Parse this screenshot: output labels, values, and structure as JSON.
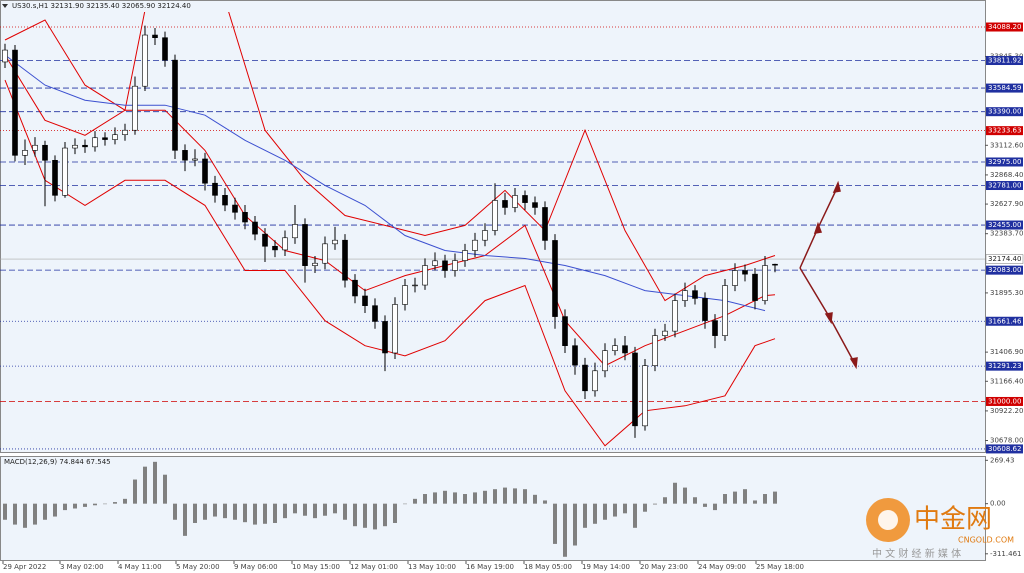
{
  "chart_data": [
    {
      "type": "candlestick",
      "title": "US30.s,H1  32131.90 32135.40 32065.90 32124.40",
      "ohlc": [
        [
          33800,
          33950,
          33750,
          33898
        ],
        [
          33898,
          33940,
          32980,
          33030
        ],
        [
          33030,
          33160,
          32950,
          33071
        ],
        [
          33071,
          33180,
          33020,
          33113
        ],
        [
          33113,
          33150,
          32610,
          32989
        ],
        [
          32989,
          33030,
          32650,
          32700
        ],
        [
          32700,
          33140,
          32680,
          33090
        ],
        [
          33090,
          33170,
          33040,
          33113
        ],
        [
          33113,
          33160,
          33050,
          33100
        ],
        [
          33100,
          33230,
          33060,
          33175
        ],
        [
          33175,
          33220,
          33110,
          33160
        ],
        [
          33160,
          33260,
          33120,
          33200
        ],
        [
          33200,
          33290,
          33150,
          33237
        ],
        [
          33237,
          33680,
          33200,
          33600
        ],
        [
          33600,
          34100,
          33560,
          34022
        ],
        [
          34022,
          34080,
          33940,
          34000
        ],
        [
          34000,
          34050,
          33760,
          33815
        ],
        [
          33815,
          33860,
          33000,
          33071
        ],
        [
          33071,
          33120,
          32900,
          32990
        ],
        [
          32990,
          33080,
          32940,
          33000
        ],
        [
          33000,
          33050,
          32740,
          32800
        ],
        [
          32800,
          32860,
          32640,
          32700
        ],
        [
          32700,
          32760,
          32570,
          32620
        ],
        [
          32620,
          32680,
          32500,
          32560
        ],
        [
          32560,
          32620,
          32420,
          32480
        ],
        [
          32480,
          32530,
          32330,
          32380
        ],
        [
          32380,
          32430,
          32150,
          32280
        ],
        [
          32280,
          32330,
          32190,
          32250
        ],
        [
          32250,
          32410,
          32200,
          32350
        ],
        [
          32350,
          32620,
          32300,
          32460
        ],
        [
          32460,
          32510,
          31980,
          32120
        ],
        [
          32120,
          32200,
          32060,
          32140
        ],
        [
          32140,
          32360,
          32090,
          32300
        ],
        [
          32300,
          32440,
          32250,
          32330
        ],
        [
          32330,
          32380,
          31940,
          32000
        ],
        [
          32000,
          32050,
          31810,
          31870
        ],
        [
          31870,
          31930,
          31730,
          31790
        ],
        [
          31790,
          31850,
          31600,
          31660
        ],
        [
          31660,
          31710,
          31250,
          31400
        ],
        [
          31400,
          31860,
          31350,
          31800
        ],
        [
          31800,
          32010,
          31750,
          31956
        ],
        [
          31956,
          32020,
          31900,
          31960
        ],
        [
          31960,
          32180,
          31920,
          32121
        ],
        [
          32121,
          32230,
          32080,
          32160
        ],
        [
          32160,
          32210,
          32020,
          32080
        ],
        [
          32080,
          32220,
          32030,
          32162
        ],
        [
          32162,
          32300,
          32110,
          32245
        ],
        [
          32245,
          32390,
          32190,
          32330
        ],
        [
          32330,
          32470,
          32280,
          32410
        ],
        [
          32410,
          32800,
          32370,
          32658
        ],
        [
          32658,
          32720,
          32540,
          32600
        ],
        [
          32600,
          32760,
          32560,
          32699
        ],
        [
          32699,
          32740,
          32580,
          32640
        ],
        [
          32640,
          32690,
          32540,
          32600
        ],
        [
          32600,
          32650,
          32250,
          32328
        ],
        [
          32328,
          32380,
          31600,
          31700
        ],
        [
          31700,
          31760,
          31400,
          31460
        ],
        [
          31460,
          31520,
          31220,
          31300
        ],
        [
          31300,
          31360,
          31020,
          31088
        ],
        [
          31088,
          31320,
          31040,
          31253
        ],
        [
          31253,
          31480,
          31200,
          31419
        ],
        [
          31419,
          31520,
          31380,
          31460
        ],
        [
          31460,
          31540,
          31340,
          31400
        ],
        [
          31400,
          31450,
          30700,
          30799
        ],
        [
          30799,
          31350,
          30760,
          31295
        ],
        [
          31295,
          31600,
          31250,
          31543
        ],
        [
          31543,
          31640,
          31500,
          31580
        ],
        [
          31580,
          31890,
          31530,
          31832
        ],
        [
          31832,
          31980,
          31780,
          31914
        ],
        [
          31914,
          31960,
          31800,
          31850
        ],
        [
          31850,
          31900,
          31600,
          31667
        ],
        [
          31667,
          31720,
          31440,
          31543
        ],
        [
          31543,
          32010,
          31500,
          31956
        ],
        [
          31956,
          32140,
          31910,
          32080
        ],
        [
          32080,
          32130,
          31990,
          32050
        ],
        [
          32050,
          32100,
          31760,
          31832
        ],
        [
          31832,
          32200,
          31800,
          32121
        ],
        [
          32131.9,
          32135.4,
          32065.9,
          32124.4
        ]
      ],
      "series": [
        {
          "color": "#e00000",
          "x": [
            0,
            4,
            8,
            12,
            14,
            18,
            22,
            26,
            30,
            34,
            38,
            42,
            46,
            50,
            54,
            58,
            62,
            66,
            70,
            74,
            77
          ],
          "values": [
            33981,
            34146,
            33609,
            33402,
            34228,
            34270,
            34311,
            33237,
            32824,
            32534,
            32452,
            32369,
            32452,
            32741,
            32410,
            33237,
            32410,
            31832,
            32038,
            32121,
            32204
          ]
        },
        {
          "color": "#e00000",
          "x": [
            0,
            4,
            8,
            12,
            16,
            20,
            24,
            28,
            32,
            36,
            40,
            44,
            48,
            52,
            56,
            60,
            64,
            68,
            72,
            76,
            77
          ],
          "values": [
            33857,
            33319,
            33195,
            33402,
            33402,
            33071,
            32534,
            32245,
            32162,
            31914,
            32038,
            32121,
            32204,
            32452,
            31666,
            31295,
            31460,
            31584,
            31708,
            31873,
            31880
          ]
        },
        {
          "color": "#e00000",
          "x": [
            0,
            4,
            8,
            12,
            16,
            20,
            24,
            28,
            32,
            36,
            40,
            44,
            48,
            52,
            56,
            60,
            64,
            68,
            72,
            75,
            77
          ],
          "values": [
            33650,
            32824,
            32617,
            32824,
            32824,
            32617,
            32080,
            32080,
            31666,
            31460,
            31377,
            31501,
            31832,
            31956,
            31088,
            30634,
            30923,
            30964,
            31047,
            31460,
            31518
          ]
        },
        {
          "color": "#3c50d0",
          "x": [
            0,
            4,
            8,
            12,
            16,
            20,
            24,
            28,
            32,
            36,
            40,
            44,
            48,
            52,
            56,
            60,
            64,
            68,
            72,
            76
          ],
          "values": [
            33857,
            33609,
            33485,
            33443,
            33443,
            33361,
            33154,
            32989,
            32782,
            32617,
            32369,
            32245,
            32204,
            32179,
            32121,
            32038,
            31914,
            31873,
            31832,
            31749
          ]
        }
      ],
      "xlim": [
        -0.5,
        98
      ],
      "ylim": [
        30575,
        34212
      ],
      "yticks": [
        {
          "value": 33845.3,
          "label": "33845.30"
        },
        {
          "value": 33112.6,
          "label": "33112.60"
        },
        {
          "value": 32868.4,
          "label": "32868.40"
        },
        {
          "value": 32627.9,
          "label": "32627.90"
        },
        {
          "value": 32383.7,
          "label": "32383.70"
        },
        {
          "value": 31895.3,
          "label": "31895.30"
        },
        {
          "value": 31406.9,
          "label": "31406.90"
        },
        {
          "value": 31166.4,
          "label": "31166.40"
        },
        {
          "value": 30922.2,
          "label": "30922.20"
        },
        {
          "value": 30678,
          "label": "30678.00"
        }
      ],
      "xticks": [
        {
          "value": -0.2,
          "label": "29 Apr 2022"
        },
        {
          "value": 5.5,
          "label": "3 May 02:00"
        },
        {
          "value": 11.3,
          "label": "4 May 11:00"
        },
        {
          "value": 17.1,
          "label": "5 May 20:00"
        },
        {
          "value": 22.9,
          "label": "9 May 06:00"
        },
        {
          "value": 28.7,
          "label": "10 May 15:00"
        },
        {
          "value": 34.5,
          "label": "12 May 01:00"
        },
        {
          "value": 40.3,
          "label": "13 May 10:00"
        },
        {
          "value": 46.1,
          "label": "16 May 19:00"
        },
        {
          "value": 51.9,
          "label": "18 May 05:00"
        },
        {
          "value": 57.7,
          "label": "19 May 14:00"
        },
        {
          "value": 63.5,
          "label": "20 May 23:00"
        },
        {
          "value": 69.3,
          "label": "24 May 09:00"
        },
        {
          "value": 75.1,
          "label": "25 May 18:00"
        }
      ],
      "levels": [
        {
          "value": 34088.2,
          "label": "34088.20",
          "color": "#d00000",
          "style": "dotted"
        },
        {
          "value": 33811.92,
          "label": "33811.92",
          "color": "#2030a0",
          "style": "dashed"
        },
        {
          "value": 33584.59,
          "label": "33584.59",
          "color": "#2030a0",
          "style": "dashed"
        },
        {
          "value": 33390,
          "label": "33390.00",
          "color": "#2030a0",
          "style": "dashed"
        },
        {
          "value": 33233.63,
          "label": "33233.63",
          "color": "#d00000",
          "style": "dotted"
        },
        {
          "value": 32975,
          "label": "32975.00",
          "color": "#2030a0",
          "style": "dashed"
        },
        {
          "value": 32781,
          "label": "32781.00",
          "color": "#2030a0",
          "style": "dashed"
        },
        {
          "value": 32455,
          "label": "32455.00",
          "color": "#2030a0",
          "style": "dashed"
        },
        {
          "value": 32083,
          "label": "32083.00",
          "color": "#2030a0",
          "style": "dashed"
        },
        {
          "value": 31661.46,
          "label": "31661.46",
          "color": "#2030a0",
          "style": "dotted"
        },
        {
          "value": 31291.23,
          "label": "31291.23",
          "color": "#2030a0",
          "style": "dotted"
        },
        {
          "value": 31000,
          "label": "31000.00",
          "color": "#d00000",
          "style": "dashed"
        },
        {
          "value": 30608.62,
          "label": "30608.62",
          "color": "#2030a0",
          "style": "dotted"
        }
      ],
      "current_price": {
        "value": 32174.4,
        "label": "32174.40"
      }
    },
    {
      "type": "bar",
      "title": "MACD(12,26,9) 74.844 67.545",
      "color": "#808080",
      "values": [
        -100,
        -130,
        -150,
        -130,
        -100,
        -80,
        -40,
        -30,
        -20,
        -10,
        0,
        10,
        30,
        150,
        230,
        260,
        180,
        -100,
        -200,
        -120,
        -100,
        -80,
        -90,
        -100,
        -115,
        -130,
        -125,
        -120,
        -90,
        -60,
        -75,
        -90,
        -75,
        -60,
        -100,
        -140,
        -150,
        -160,
        -140,
        -120,
        0,
        30,
        60,
        70,
        80,
        70,
        60,
        70,
        80,
        90,
        100,
        95,
        90,
        55,
        20,
        -250,
        -330,
        -260,
        -150,
        -125,
        -100,
        -80,
        -60,
        -150,
        -50,
        -5,
        40,
        130,
        100,
        40,
        -20,
        -40,
        60,
        75,
        90,
        20,
        60,
        75
      ],
      "ylim": [
        -350,
        290
      ],
      "yticks": [
        {
          "value": 269.43,
          "label": "269.43"
        },
        {
          "value": 0,
          "label": "0.00"
        },
        {
          "value": -311.461,
          "label": "-311.461"
        }
      ]
    }
  ],
  "watermark": {
    "name": "中金网",
    "site": "CNGOLD.COM",
    "slogan": "中 文 财 经 新 媒 体"
  }
}
